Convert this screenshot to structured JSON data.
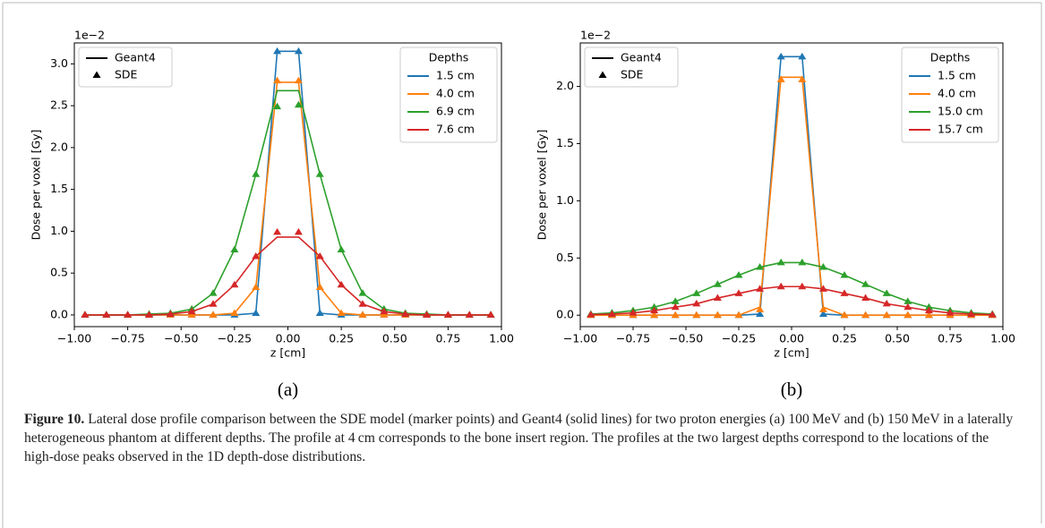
{
  "chart_data": [
    {
      "type": "line",
      "panel_label": "(a)",
      "offset_text": "1e−2",
      "x_label": "z [cm]",
      "y_label": "Dose per voxel [Gy]",
      "x": [
        -0.95,
        -0.85,
        -0.75,
        -0.65,
        -0.55,
        -0.45,
        -0.35,
        -0.25,
        -0.15,
        -0.05,
        0.05,
        0.15,
        0.25,
        0.35,
        0.45,
        0.55,
        0.65,
        0.75,
        0.85,
        0.95
      ],
      "xlim": [
        -1.0,
        1.0
      ],
      "ylim": [
        -0.14,
        3.25
      ],
      "xticks": [
        {
          "value": -1.0,
          "label": "−1.00"
        },
        {
          "value": -0.75,
          "label": "−0.75"
        },
        {
          "value": -0.5,
          "label": "−0.50"
        },
        {
          "value": -0.25,
          "label": "−0.25"
        },
        {
          "value": 0,
          "label": "0.00"
        },
        {
          "value": 0.25,
          "label": "0.25"
        },
        {
          "value": 0.5,
          "label": "0.50"
        },
        {
          "value": 0.75,
          "label": "0.75"
        },
        {
          "value": 1.0,
          "label": "1.00"
        }
      ],
      "yticks": [
        {
          "value": 0,
          "label": "0.0"
        },
        {
          "value": 0.5,
          "label": "0.5"
        },
        {
          "value": 1,
          "label": "1.0"
        },
        {
          "value": 1.5,
          "label": "1.5"
        },
        {
          "value": 2,
          "label": "2.0"
        },
        {
          "value": 2.5,
          "label": "2.5"
        },
        {
          "value": 3,
          "label": "3.0"
        }
      ],
      "style_legend": {
        "line": "Geant4",
        "marker": "SDE"
      },
      "legend_title": "Depths",
      "series": [
        {
          "name": "1.5 cm",
          "color": "#1f77b4",
          "values": [
            0,
            0,
            0,
            0,
            0,
            0,
            0,
            0,
            0.02,
            3.15,
            3.15,
            0.02,
            0,
            0,
            0,
            0,
            0,
            0,
            0,
            0
          ],
          "sde_values": [
            0,
            0,
            0,
            0,
            0,
            0,
            0,
            0,
            0.02,
            3.15,
            3.15,
            0.02,
            0,
            0,
            0,
            0,
            0,
            0,
            0,
            0
          ]
        },
        {
          "name": "4.0 cm",
          "color": "#ff7f0e",
          "values": [
            0,
            0,
            0,
            0,
            0,
            0,
            0,
            0.02,
            0.33,
            2.78,
            2.78,
            0.33,
            0.02,
            0,
            0,
            0,
            0,
            0,
            0,
            0
          ],
          "sde_values": [
            0,
            0,
            0,
            0,
            0,
            0,
            0,
            0.02,
            0.33,
            2.8,
            2.8,
            0.33,
            0.02,
            0,
            0,
            0,
            0,
            0,
            0,
            0
          ]
        },
        {
          "name": "6.9 cm",
          "color": "#2ca02c",
          "values": [
            0,
            0,
            0,
            0.01,
            0.02,
            0.07,
            0.26,
            0.78,
            1.68,
            2.68,
            2.68,
            1.68,
            0.78,
            0.26,
            0.07,
            0.02,
            0.01,
            0,
            0,
            0
          ],
          "sde_values": [
            0,
            0,
            0,
            0.01,
            0.02,
            0.07,
            0.26,
            0.78,
            1.68,
            2.49,
            2.51,
            1.68,
            0.78,
            0.26,
            0.07,
            0.02,
            0.01,
            0,
            0,
            0
          ]
        },
        {
          "name": "7.6 cm",
          "color": "#d62728",
          "values": [
            0,
            0,
            0,
            0,
            0.01,
            0.04,
            0.13,
            0.36,
            0.7,
            0.93,
            0.93,
            0.7,
            0.36,
            0.13,
            0.04,
            0.01,
            0,
            0,
            0,
            0
          ],
          "sde_values": [
            0,
            0,
            0,
            0,
            0.01,
            0.04,
            0.13,
            0.36,
            0.7,
            0.99,
            0.99,
            0.7,
            0.36,
            0.13,
            0.04,
            0.01,
            0,
            0,
            0,
            0
          ]
        }
      ]
    },
    {
      "type": "line",
      "panel_label": "(b)",
      "offset_text": "1e−2",
      "x_label": "z [cm]",
      "y_label": "Dose per voxel [Gy]",
      "x": [
        -0.95,
        -0.85,
        -0.75,
        -0.65,
        -0.55,
        -0.45,
        -0.35,
        -0.25,
        -0.15,
        -0.05,
        0.05,
        0.15,
        0.25,
        0.35,
        0.45,
        0.55,
        0.65,
        0.75,
        0.85,
        0.95
      ],
      "xlim": [
        -1.0,
        1.0
      ],
      "ylim": [
        -0.1,
        2.38
      ],
      "xticks": [
        {
          "value": -1.0,
          "label": "−1.00"
        },
        {
          "value": -0.75,
          "label": "−0.75"
        },
        {
          "value": -0.5,
          "label": "−0.50"
        },
        {
          "value": -0.25,
          "label": "−0.25"
        },
        {
          "value": 0,
          "label": "0.00"
        },
        {
          "value": 0.25,
          "label": "0.25"
        },
        {
          "value": 0.5,
          "label": "0.50"
        },
        {
          "value": 0.75,
          "label": "0.75"
        },
        {
          "value": 1.0,
          "label": "1.00"
        }
      ],
      "yticks": [
        {
          "value": 0,
          "label": "0.0"
        },
        {
          "value": 0.5,
          "label": "0.5"
        },
        {
          "value": 1,
          "label": "1.0"
        },
        {
          "value": 1.5,
          "label": "1.5"
        },
        {
          "value": 2,
          "label": "2.0"
        }
      ],
      "style_legend": {
        "line": "Geant4",
        "marker": "SDE"
      },
      "legend_title": "Depths",
      "series": [
        {
          "name": "1.5 cm",
          "color": "#1f77b4",
          "values": [
            0,
            0,
            0,
            0,
            0,
            0,
            0,
            0,
            0.01,
            2.26,
            2.26,
            0.01,
            0,
            0,
            0,
            0,
            0,
            0,
            0,
            0
          ],
          "sde_values": [
            0,
            0,
            0,
            0,
            0,
            0,
            0,
            0,
            0.01,
            2.26,
            2.26,
            0.01,
            0,
            0,
            0,
            0,
            0,
            0,
            0,
            0
          ]
        },
        {
          "name": "4.0 cm",
          "color": "#ff7f0e",
          "values": [
            0,
            0,
            0,
            0,
            0,
            0,
            0,
            0,
            0.07,
            2.08,
            2.08,
            0.07,
            0,
            0,
            0,
            0,
            0,
            0,
            0,
            0
          ],
          "sde_values": [
            0,
            0,
            0,
            0,
            0,
            0,
            0,
            0,
            0.05,
            2.06,
            2.06,
            0.05,
            0,
            0,
            0,
            0,
            0,
            0,
            0,
            0
          ]
        },
        {
          "name": "15.0 cm",
          "color": "#2ca02c",
          "values": [
            0.01,
            0.02,
            0.04,
            0.07,
            0.12,
            0.19,
            0.27,
            0.35,
            0.42,
            0.46,
            0.46,
            0.42,
            0.35,
            0.27,
            0.19,
            0.12,
            0.07,
            0.04,
            0.02,
            0.01
          ],
          "sde_values": [
            0.01,
            0.02,
            0.04,
            0.07,
            0.12,
            0.19,
            0.27,
            0.35,
            0.42,
            0.46,
            0.46,
            0.42,
            0.35,
            0.27,
            0.19,
            0.12,
            0.07,
            0.04,
            0.02,
            0.01
          ]
        },
        {
          "name": "15.7 cm",
          "color": "#d62728",
          "values": [
            0.005,
            0.01,
            0.02,
            0.04,
            0.07,
            0.1,
            0.15,
            0.19,
            0.23,
            0.25,
            0.25,
            0.23,
            0.19,
            0.15,
            0.1,
            0.07,
            0.04,
            0.02,
            0.01,
            0.005
          ],
          "sde_values": [
            0.005,
            0.01,
            0.02,
            0.04,
            0.07,
            0.1,
            0.15,
            0.19,
            0.23,
            0.25,
            0.25,
            0.23,
            0.19,
            0.15,
            0.1,
            0.07,
            0.04,
            0.02,
            0.01,
            0.005
          ]
        }
      ]
    }
  ],
  "caption": {
    "label": "Figure 10.",
    "text": "Lateral dose profile comparison between the SDE model (marker points) and Geant4 (solid lines) for two proton energies (a) 100 MeV and (b) 150 MeV in a laterally heterogeneous phantom at different depths. The profile at 4 cm corresponds to the bone insert region. The profiles at the two largest depths correspond to the locations of the high-dose peaks observed in the 1D depth-dose distributions."
  }
}
